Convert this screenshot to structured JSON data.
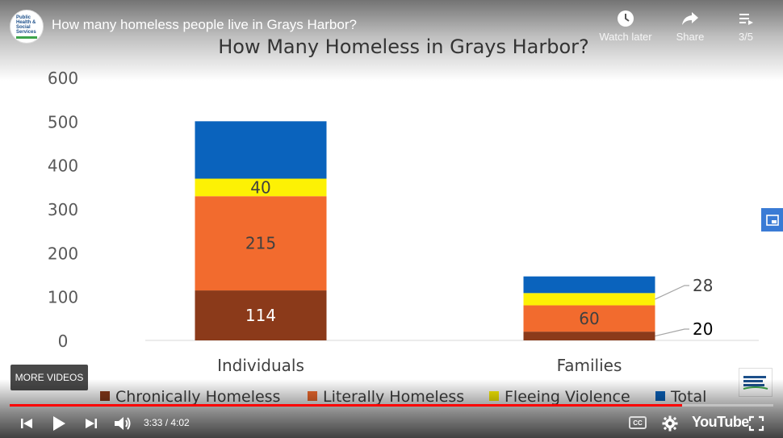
{
  "video": {
    "title": "How many homeless people live in Grays Harbor?",
    "channel_logo_text": "Public Health & Social Services"
  },
  "top_actions": {
    "watch_later": "Watch later",
    "share": "Share",
    "playlist": "3/5"
  },
  "more_videos_label": "MORE VIDEOS",
  "controls": {
    "time": "3:33 / 4:02",
    "progress_fraction": 0.881,
    "youtube_label": "YouTube",
    "cc_label": "CC"
  },
  "colors": {
    "chronically_homeless": "#8b3a1a",
    "literally_homeless": "#f26b2e",
    "fleeing_violence": "#fdf104",
    "total": "#0a63bd",
    "progress": "#ff0000"
  },
  "chart_data": {
    "type": "bar",
    "stacked": true,
    "title": "How Many Homeless in Grays Harbor?",
    "categories": [
      "Individuals",
      "Families"
    ],
    "ylim": [
      0,
      600
    ],
    "yticks": [
      0,
      100,
      200,
      300,
      400,
      500,
      600
    ],
    "legend_position": "bottom",
    "series": [
      {
        "name": "Chronically Homeless",
        "values": [
          114,
          20
        ],
        "labels": [
          "114",
          "20"
        ]
      },
      {
        "name": "Literally Homeless",
        "values": [
          215,
          60
        ],
        "labels": [
          "215",
          "60"
        ]
      },
      {
        "name": "Fleeing Violence",
        "values": [
          40,
          28
        ],
        "labels": [
          "40",
          "28"
        ]
      },
      {
        "name": "Total",
        "values": [
          131,
          38
        ],
        "labels": [
          "",
          ""
        ]
      }
    ]
  }
}
